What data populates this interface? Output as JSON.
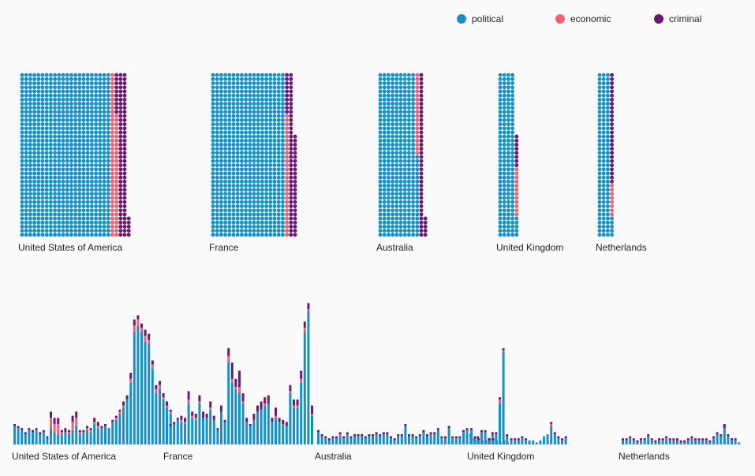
{
  "colors": {
    "political": "#1592c5",
    "economic": "#ef6273",
    "criminal": "#6a1a72"
  },
  "legend": [
    {
      "key": "political",
      "label": "political"
    },
    {
      "key": "economic",
      "label": "economic"
    },
    {
      "key": "criminal",
      "label": "criminal"
    }
  ],
  "chart_data": [
    {
      "type": "waffle",
      "unit": "incident",
      "series_names": [
        "political",
        "economic",
        "criminal"
      ],
      "countries": [
        {
          "name": "United States of America",
          "political": 880,
          "economic": 70,
          "criminal": 95
        },
        {
          "name": "France",
          "political": 720,
          "economic": 30,
          "criminal": 75
        },
        {
          "name": "Australia",
          "political": 380,
          "economic": 20,
          "criminal": 45
        },
        {
          "name": "United Kingdom",
          "political": 165,
          "economic": 12,
          "criminal": 8
        },
        {
          "name": "Netherlands",
          "political": 125,
          "economic": 8,
          "criminal": 27
        }
      ]
    },
    {
      "type": "bar",
      "stacked": true,
      "series_names": [
        "political",
        "economic",
        "criminal"
      ],
      "countries": [
        {
          "name": "United States of America",
          "bars": [
            [
              9,
              0,
              1
            ],
            [
              8,
              0,
              1
            ],
            [
              7,
              0,
              1
            ],
            [
              5,
              0,
              1
            ],
            [
              7,
              0,
              1
            ],
            [
              6,
              0,
              1
            ],
            [
              7,
              0,
              1
            ],
            [
              5,
              0,
              1
            ],
            [
              6,
              0,
              1
            ],
            [
              3,
              0,
              1
            ],
            [
              8,
              5,
              3
            ],
            [
              6,
              4,
              3
            ],
            [
              5,
              5,
              3
            ],
            [
              5,
              1,
              1
            ],
            [
              6,
              0,
              2
            ],
            [
              5,
              1,
              1
            ],
            [
              7,
              4,
              3
            ],
            [
              9,
              4,
              3
            ],
            [
              5,
              1,
              1
            ],
            [
              6,
              0,
              1
            ],
            [
              7,
              1,
              1
            ],
            [
              6,
              1,
              1
            ],
            [
              10,
              1,
              2
            ],
            [
              8,
              1,
              2
            ],
            [
              8,
              0,
              1
            ],
            [
              9,
              0,
              1
            ],
            [
              8,
              0,
              0
            ],
            [
              11,
              0,
              1
            ],
            [
              12,
              1,
              1
            ],
            [
              15,
              1,
              1
            ],
            [
              18,
              1,
              2
            ],
            [
              22,
              0,
              2
            ],
            [
              30,
              2,
              3
            ],
            [
              55,
              3,
              3
            ],
            [
              58,
              3,
              2
            ],
            [
              55,
              2,
              2
            ],
            [
              50,
              3,
              3
            ],
            [
              49,
              2,
              3
            ],
            [
              37,
              2,
              2
            ],
            [
              25,
              2,
              2
            ],
            [
              27,
              2,
              2
            ],
            [
              22,
              1,
              2
            ],
            [
              17,
              1,
              1
            ],
            [
              15,
              1,
              1
            ]
          ]
        },
        {
          "name": "France",
          "bars": [
            [
              18,
              1,
              2
            ],
            [
              9,
              0,
              1
            ],
            [
              10,
              0,
              1
            ],
            [
              12,
              0,
              1
            ],
            [
              11,
              1,
              2
            ],
            [
              10,
              1,
              2
            ],
            [
              20,
              2,
              4
            ],
            [
              13,
              1,
              2
            ],
            [
              12,
              1,
              2
            ],
            [
              20,
              1,
              3
            ],
            [
              13,
              0,
              3
            ],
            [
              13,
              0,
              2
            ],
            [
              17,
              1,
              3
            ],
            [
              12,
              0,
              2
            ],
            [
              7,
              0,
              1
            ],
            [
              16,
              0,
              3
            ],
            [
              11,
              0,
              1
            ],
            [
              40,
              3,
              4
            ],
            [
              30,
              2,
              8
            ],
            [
              27,
              1,
              4
            ],
            [
              25,
              3,
              8
            ],
            [
              20,
              1,
              4
            ],
            [
              11,
              0,
              2
            ],
            [
              9,
              0,
              1
            ],
            [
              12,
              0,
              3
            ],
            [
              16,
              0,
              3
            ],
            [
              17,
              0,
              4
            ],
            [
              19,
              1,
              3
            ],
            [
              20,
              0,
              4
            ],
            [
              11,
              0,
              2
            ],
            [
              13,
              1,
              4
            ],
            [
              11,
              0,
              2
            ],
            [
              10,
              0,
              2
            ],
            [
              9,
              0,
              2
            ],
            [
              25,
              1,
              3
            ],
            [
              18,
              1,
              3
            ],
            [
              18,
              1,
              3
            ],
            [
              30,
              2,
              4
            ],
            [
              55,
              2,
              3
            ],
            [
              65,
              1,
              3
            ],
            [
              14,
              1,
              4
            ]
          ]
        },
        {
          "name": "Australia",
          "bars": [
            [
              6,
              0,
              1
            ],
            [
              4,
              0,
              1
            ],
            [
              3,
              0,
              1
            ],
            [
              2,
              0,
              1
            ],
            [
              3,
              0,
              1
            ],
            [
              3,
              0,
              1
            ],
            [
              4,
              1,
              1
            ],
            [
              3,
              0,
              1
            ],
            [
              5,
              0,
              1
            ],
            [
              3,
              0,
              1
            ],
            [
              4,
              0,
              1
            ],
            [
              4,
              0,
              1
            ],
            [
              4,
              0,
              1
            ],
            [
              3,
              0,
              1
            ],
            [
              4,
              0,
              1
            ],
            [
              4,
              0,
              1
            ],
            [
              5,
              0,
              1
            ],
            [
              4,
              0,
              1
            ],
            [
              5,
              0,
              1
            ],
            [
              5,
              0,
              1
            ],
            [
              3,
              0,
              1
            ],
            [
              2,
              0,
              1
            ],
            [
              4,
              0,
              1
            ],
            [
              4,
              0,
              1
            ],
            [
              9,
              0,
              1
            ],
            [
              4,
              0,
              1
            ],
            [
              4,
              0,
              1
            ],
            [
              3,
              0,
              1
            ],
            [
              4,
              0,
              1
            ],
            [
              6,
              0,
              1
            ],
            [
              4,
              0,
              1
            ],
            [
              5,
              0,
              1
            ],
            [
              5,
              0,
              1
            ],
            [
              7,
              0,
              1
            ],
            [
              3,
              0,
              1
            ],
            [
              3,
              0,
              1
            ],
            [
              8,
              0,
              1
            ],
            [
              3,
              0,
              1
            ],
            [
              3,
              0,
              1
            ],
            [
              3,
              0,
              1
            ],
            [
              6,
              0,
              1
            ],
            [
              7,
              0,
              1
            ],
            [
              4,
              0,
              1
            ],
            [
              2,
              0,
              1
            ],
            [
              3,
              0,
              1
            ],
            [
              6,
              0,
              1
            ],
            [
              6,
              0,
              1
            ],
            [
              2,
              0,
              1
            ],
            [
              5,
              0,
              1
            ],
            [
              5,
              0,
              1
            ],
            [
              20,
              2,
              1
            ],
            [
              45,
              1,
              1
            ],
            [
              4,
              0,
              1
            ]
          ]
        },
        {
          "name": "United Kingdom",
          "bars": [
            [
              7,
              0,
              1
            ],
            [
              3,
              0,
              1
            ],
            [
              2,
              0,
              1
            ],
            [
              2,
              0,
              0
            ],
            [
              2,
              0,
              0
            ],
            [
              2,
              0,
              1
            ],
            [
              2,
              0,
              1
            ],
            [
              2,
              0,
              0
            ],
            [
              1,
              0,
              0
            ],
            [
              2,
              0,
              0
            ],
            [
              1,
              0,
              0
            ],
            [
              2,
              0,
              1
            ],
            [
              2,
              0,
              1
            ],
            [
              2,
              0,
              1
            ],
            [
              3,
              0,
              1
            ],
            [
              2,
              0,
              1
            ],
            [
              2,
              0,
              0
            ],
            [
              2,
              0,
              0
            ],
            [
              1,
              0,
              0
            ],
            [
              2,
              0,
              0
            ],
            [
              4,
              0,
              0
            ],
            [
              5,
              0,
              0
            ],
            [
              9,
              1,
              1
            ],
            [
              5,
              0,
              1
            ],
            [
              3,
              0,
              1
            ],
            [
              2,
              0,
              1
            ],
            [
              3,
              0,
              1
            ]
          ]
        },
        {
          "name": "Netherlands",
          "bars": [
            [
              2,
              0,
              1
            ],
            [
              2,
              0,
              1
            ],
            [
              3,
              0,
              1
            ],
            [
              2,
              0,
              1
            ],
            [
              1,
              0,
              1
            ],
            [
              2,
              0,
              1
            ],
            [
              2,
              0,
              1
            ],
            [
              4,
              0,
              1
            ],
            [
              2,
              0,
              1
            ],
            [
              1,
              0,
              1
            ],
            [
              2,
              0,
              1
            ],
            [
              2,
              0,
              1
            ],
            [
              3,
              0,
              1
            ],
            [
              2,
              0,
              1
            ],
            [
              2,
              0,
              1
            ],
            [
              2,
              0,
              1
            ],
            [
              1,
              0,
              1
            ],
            [
              1,
              0,
              1
            ],
            [
              2,
              0,
              1
            ],
            [
              3,
              0,
              1
            ],
            [
              2,
              0,
              1
            ],
            [
              2,
              0,
              1
            ],
            [
              2,
              0,
              1
            ],
            [
              2,
              0,
              1
            ],
            [
              1,
              0,
              1
            ],
            [
              3,
              0,
              1
            ],
            [
              5,
              0,
              1
            ],
            [
              4,
              0,
              1
            ],
            [
              8,
              0,
              2
            ],
            [
              4,
              0,
              1
            ],
            [
              2,
              0,
              1
            ],
            [
              2,
              0,
              1
            ],
            [
              1,
              0,
              0
            ]
          ]
        }
      ]
    }
  ]
}
